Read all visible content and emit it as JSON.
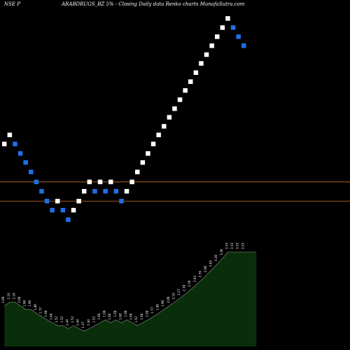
{
  "header": {
    "left": "NSE P",
    "right": "ARABDRUGS_BZ 5% - Closing Daily data Renko charts MunafaSutra.com"
  },
  "colors": {
    "background": "#000000",
    "up_brick": "#ffffff",
    "down_brick": "#1f6fe8",
    "hline": "#b5651d",
    "volume_fill": "#0a2e0a",
    "volume_line": "#ffffff",
    "label": "#ffffff"
  },
  "chart_data": [
    {
      "type": "renko",
      "bricks": [
        {
          "dir": "up",
          "value": 1.99
        },
        {
          "dir": "up",
          "value": 2.09
        },
        {
          "dir": "down",
          "value": 1.99
        },
        {
          "dir": "down",
          "value": 1.89
        },
        {
          "dir": "down",
          "value": 1.8
        },
        {
          "dir": "down",
          "value": 1.71
        },
        {
          "dir": "down",
          "value": 1.62
        },
        {
          "dir": "down",
          "value": 1.54
        },
        {
          "dir": "down",
          "value": 1.46
        },
        {
          "dir": "down",
          "value": 1.39
        },
        {
          "dir": "up",
          "value": 1.46
        },
        {
          "dir": "down",
          "value": 1.39
        },
        {
          "dir": "down",
          "value": 1.32
        },
        {
          "dir": "up",
          "value": 1.39
        },
        {
          "dir": "up",
          "value": 1.46
        },
        {
          "dir": "up",
          "value": 1.54
        },
        {
          "dir": "up",
          "value": 1.62
        },
        {
          "dir": "down",
          "value": 1.54
        },
        {
          "dir": "up",
          "value": 1.62
        },
        {
          "dir": "down",
          "value": 1.54
        },
        {
          "dir": "up",
          "value": 1.62
        },
        {
          "dir": "down",
          "value": 1.54
        },
        {
          "dir": "down",
          "value": 1.46
        },
        {
          "dir": "up",
          "value": 1.54
        },
        {
          "dir": "up",
          "value": 1.62
        },
        {
          "dir": "up",
          "value": 1.71
        },
        {
          "dir": "up",
          "value": 1.8
        },
        {
          "dir": "up",
          "value": 1.89
        },
        {
          "dir": "up",
          "value": 1.99
        },
        {
          "dir": "up",
          "value": 2.09
        },
        {
          "dir": "up",
          "value": 2.19
        },
        {
          "dir": "up",
          "value": 2.3
        },
        {
          "dir": "up",
          "value": 2.41
        },
        {
          "dir": "up",
          "value": 2.53
        },
        {
          "dir": "up",
          "value": 2.66
        },
        {
          "dir": "up",
          "value": 2.79
        },
        {
          "dir": "up",
          "value": 2.93
        },
        {
          "dir": "up",
          "value": 3.08
        },
        {
          "dir": "up",
          "value": 3.23
        },
        {
          "dir": "up",
          "value": 3.39
        },
        {
          "dir": "up",
          "value": 3.56
        },
        {
          "dir": "up",
          "value": 3.74
        },
        {
          "dir": "up",
          "value": 3.93
        },
        {
          "dir": "down",
          "value": 3.74
        },
        {
          "dir": "down",
          "value": 3.56
        },
        {
          "dir": "down",
          "value": 3.39
        }
      ],
      "hlines": [
        1.62,
        1.46
      ],
      "grid": false
    },
    {
      "type": "area",
      "labels": [
        "2.06",
        "2.16",
        "2.16",
        "2.06",
        "1.96",
        "1.96",
        "1.86",
        "1.77",
        "1.68",
        "1.60",
        "1.52",
        "1.52",
        "1.44",
        "1.52",
        "1.44",
        "1.37",
        "1.44",
        "1.52",
        "1.60",
        "1.68",
        "1.60",
        "1.68",
        "1.60",
        "1.68",
        "1.60",
        "1.52",
        "1.60",
        "1.68",
        "1.77",
        "1.86",
        "1.96",
        "2.06",
        "2.16",
        "2.27",
        "2.38",
        "2.50",
        "2.63",
        "2.76",
        "2.90",
        "3.05",
        "3.20",
        "3.36",
        "3.53",
        "3.53",
        "3.53",
        "3.53"
      ],
      "values": [
        2.06,
        2.16,
        2.16,
        2.06,
        1.96,
        1.96,
        1.86,
        1.77,
        1.68,
        1.6,
        1.52,
        1.52,
        1.44,
        1.52,
        1.44,
        1.37,
        1.44,
        1.52,
        1.6,
        1.68,
        1.6,
        1.68,
        1.6,
        1.68,
        1.6,
        1.52,
        1.6,
        1.68,
        1.77,
        1.86,
        1.96,
        2.06,
        2.16,
        2.27,
        2.38,
        2.5,
        2.63,
        2.76,
        2.9,
        3.05,
        3.2,
        3.36,
        3.53,
        3.53,
        3.53,
        3.53
      ],
      "grid": false
    }
  ]
}
